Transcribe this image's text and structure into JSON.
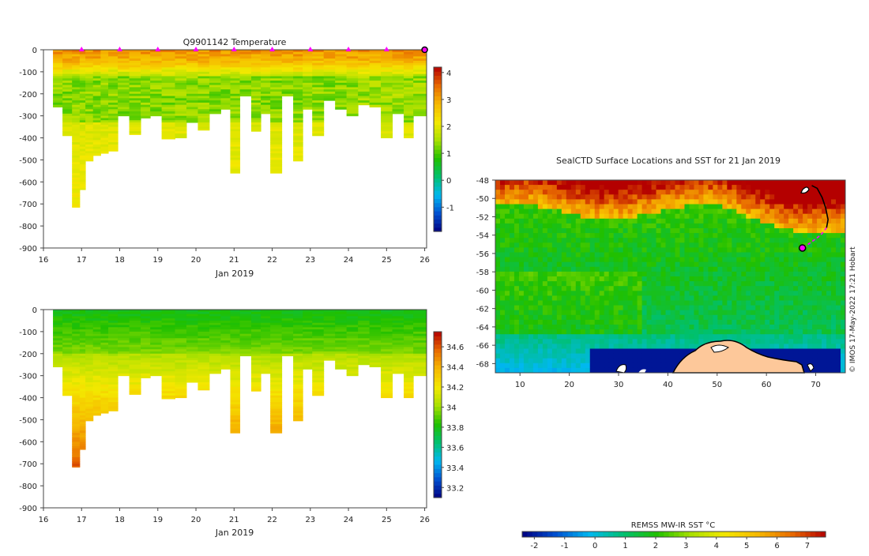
{
  "chart_data": [
    {
      "type": "heatmap",
      "title": "Q9901142  Temperature",
      "xlabel": "Jan 2019",
      "ylabel": "",
      "xlim": [
        16,
        26.05
      ],
      "ylim": [
        -900,
        0
      ],
      "xticks": [
        16,
        17,
        18,
        19,
        20,
        21,
        22,
        23,
        24,
        25,
        26
      ],
      "yticks": [
        0,
        -100,
        -200,
        -300,
        -400,
        -500,
        -600,
        -700,
        -800,
        -900
      ],
      "colorbar": {
        "ticks": [
          4,
          3,
          2,
          1,
          0,
          -1
        ],
        "range": [
          -1.9,
          4.2
        ],
        "stops": [
          "#000080",
          "#0050d0",
          "#00b8f0",
          "#00c070",
          "#20c000",
          "#a8e000",
          "#f4e800",
          "#f6b800",
          "#e86a00",
          "#b40000"
        ]
      },
      "profile_days": [
        16.4,
        16.6,
        16.9,
        17.0,
        17.2,
        17.4,
        17.6,
        17.8,
        18.1,
        18.4,
        18.7,
        18.9,
        19.3,
        19.6,
        19.9,
        20.2,
        20.5,
        20.8,
        21.0,
        21.3,
        21.6,
        21.8,
        22.1,
        22.4,
        22.7,
        22.9,
        23.2,
        23.5,
        23.8,
        24.1,
        24.4,
        24.7,
        25.0,
        25.3,
        25.6,
        25.8
      ],
      "profile_depths": [
        -260,
        -390,
        -715,
        -635,
        -505,
        -480,
        -470,
        -460,
        -300,
        -385,
        -310,
        -300,
        -405,
        -400,
        -330,
        -365,
        -290,
        -270,
        -560,
        -210,
        -370,
        -290,
        -560,
        -210,
        -505,
        -270,
        -390,
        -230,
        -270,
        -300,
        -250,
        -260,
        -400,
        -290,
        -400,
        -300
      ],
      "surface_markers_days": [
        17,
        18,
        19,
        20,
        21,
        22,
        23,
        24,
        25
      ],
      "last_marker_day": 26
    },
    {
      "type": "heatmap",
      "title": "",
      "xlabel": "Jan 2019",
      "ylabel": "",
      "xlim": [
        16,
        26.05
      ],
      "ylim": [
        -900,
        0
      ],
      "xticks": [
        16,
        17,
        18,
        19,
        20,
        21,
        22,
        23,
        24,
        25,
        26
      ],
      "yticks": [
        0,
        -100,
        -200,
        -300,
        -400,
        -500,
        -600,
        -700,
        -800,
        -900
      ],
      "colorbar": {
        "ticks": [
          34.6,
          34.4,
          34.2,
          34,
          33.8,
          33.6,
          33.4,
          33.2
        ],
        "range": [
          33.1,
          34.75
        ],
        "stops": [
          "#000080",
          "#0050d0",
          "#00b8f0",
          "#00c070",
          "#20c000",
          "#a8e000",
          "#f4e800",
          "#f6b800",
          "#e86a00",
          "#b40000"
        ]
      }
    },
    {
      "type": "heatmap",
      "title": "SealCTD Surface Locations and SST for 21 Jan 2019",
      "xlabel": "",
      "ylabel": "",
      "xlim": [
        5,
        76
      ],
      "ylim": [
        -69,
        -48
      ],
      "xticks": [
        10,
        20,
        30,
        40,
        50,
        60,
        70
      ],
      "yticks": [
        -48,
        -50,
        -52,
        -54,
        -56,
        -58,
        -60,
        -62,
        -64,
        -66,
        -68
      ],
      "track_lon": [
        69.2,
        70.3,
        71.3,
        72.0,
        72.5,
        72.2,
        71.0,
        69.5,
        68.2,
        67.3
      ],
      "track_lat": [
        -48.6,
        -48.9,
        -49.9,
        -51.0,
        -52.3,
        -53.2,
        -54.0,
        -54.6,
        -55.1,
        -55.4
      ],
      "current_lon": 67.3,
      "current_lat": -55.4,
      "credit": "© IMOS 17-May-2022 17:21 Hobart",
      "colorbar": {
        "label": "REMSS MW-IR SST °C",
        "ticks": [
          -2,
          -1,
          0,
          1,
          2,
          3,
          4,
          5,
          6,
          7
        ],
        "range": [
          -2.4,
          7.6
        ],
        "stops": [
          "#000080",
          "#0050d0",
          "#00b8f0",
          "#00c070",
          "#20c000",
          "#a8e000",
          "#f4e800",
          "#f6b800",
          "#e86a00",
          "#b40000"
        ]
      }
    }
  ]
}
